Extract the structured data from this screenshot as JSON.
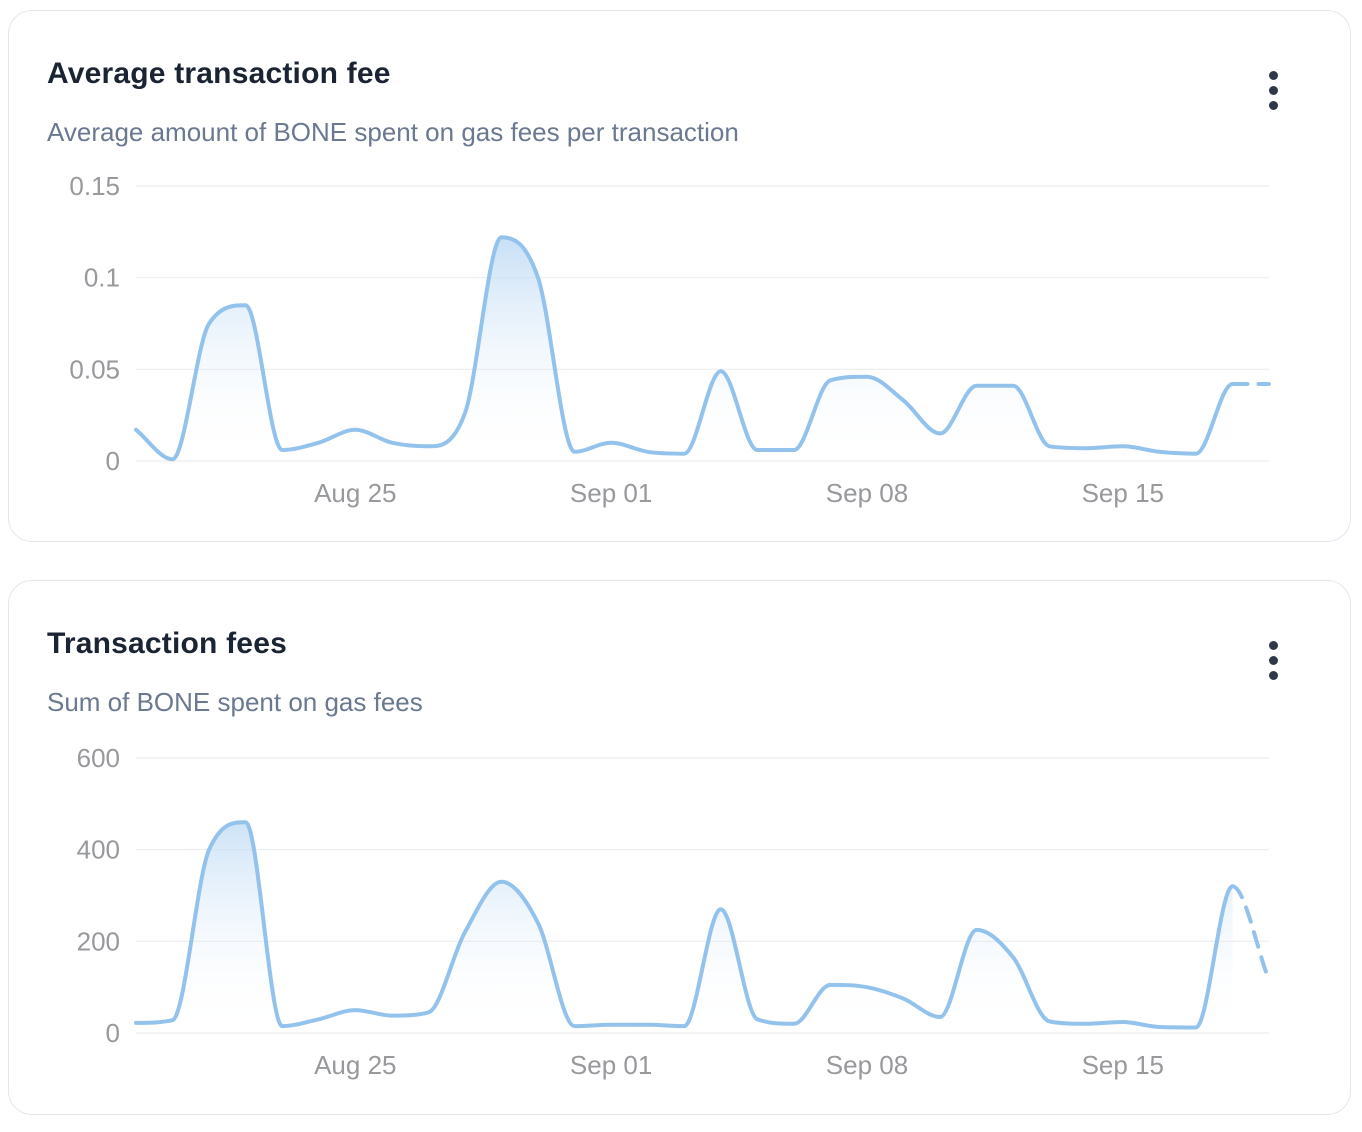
{
  "cards": [
    {
      "title": "Average transaction fee",
      "subtitle": "Average amount of BONE spent on gas fees per transaction",
      "menu_icon": "kebab-menu-icon"
    },
    {
      "title": "Transaction fees",
      "subtitle": "Sum of BONE spent on gas fees",
      "menu_icon": "kebab-menu-icon"
    }
  ],
  "colors": {
    "background": "#ffffff",
    "card_border": "#e2e7ee",
    "title": "#1b2433",
    "subtitle": "#6a7890",
    "tick_label": "#97999c",
    "grid": "#e9eaec",
    "line": "#93c2ec",
    "fill_top": "#9cc7ef",
    "menu_dots": "#2f3847"
  },
  "chart_data": [
    {
      "type": "area",
      "title": "Average transaction fee",
      "ylabel": "",
      "xlabel": "",
      "grid": "horizontal",
      "legend": false,
      "dashed_last_segment": true,
      "ylim": [
        0,
        0.15
      ],
      "y_ticks": [
        {
          "value": 0,
          "label": "0"
        },
        {
          "value": 0.05,
          "label": "0.05"
        },
        {
          "value": 0.1,
          "label": "0.1"
        },
        {
          "value": 0.15,
          "label": "0.15"
        }
      ],
      "x_ticks": [
        {
          "index": 6,
          "label": "Aug 25"
        },
        {
          "index": 13,
          "label": "Sep 01"
        },
        {
          "index": 20,
          "label": "Sep 08"
        },
        {
          "index": 27,
          "label": "Sep 15"
        }
      ],
      "x": [
        "Aug 19",
        "Aug 20",
        "Aug 21",
        "Aug 22",
        "Aug 23",
        "Aug 24",
        "Aug 25",
        "Aug 26",
        "Aug 27",
        "Aug 28",
        "Aug 29",
        "Aug 30",
        "Aug 31",
        "Sep 01",
        "Sep 02",
        "Sep 03",
        "Sep 04",
        "Sep 05",
        "Sep 06",
        "Sep 07",
        "Sep 08",
        "Sep 09",
        "Sep 10",
        "Sep 11",
        "Sep 12",
        "Sep 13",
        "Sep 14",
        "Sep 15",
        "Sep 16",
        "Sep 17",
        "Sep 18",
        "Sep 19"
      ],
      "values": [
        0.017,
        0.001,
        0.075,
        0.085,
        0.006,
        0.01,
        0.017,
        0.01,
        0.008,
        0.026,
        0.122,
        0.1,
        0.005,
        0.01,
        0.005,
        0.004,
        0.049,
        0.006,
        0.006,
        0.044,
        0.046,
        0.033,
        0.015,
        0.041,
        0.041,
        0.008,
        0.007,
        0.008,
        0.005,
        0.004,
        0.042,
        0.042
      ]
    },
    {
      "type": "area",
      "title": "Transaction fees",
      "ylabel": "",
      "xlabel": "",
      "grid": "horizontal",
      "legend": false,
      "dashed_last_segment": true,
      "ylim": [
        0,
        600
      ],
      "y_ticks": [
        {
          "value": 0,
          "label": "0"
        },
        {
          "value": 200,
          "label": "200"
        },
        {
          "value": 400,
          "label": "400"
        },
        {
          "value": 600,
          "label": "600"
        }
      ],
      "x_ticks": [
        {
          "index": 6,
          "label": "Aug 25"
        },
        {
          "index": 13,
          "label": "Sep 01"
        },
        {
          "index": 20,
          "label": "Sep 08"
        },
        {
          "index": 27,
          "label": "Sep 15"
        }
      ],
      "x": [
        "Aug 19",
        "Aug 20",
        "Aug 21",
        "Aug 22",
        "Aug 23",
        "Aug 24",
        "Aug 25",
        "Aug 26",
        "Aug 27",
        "Aug 28",
        "Aug 29",
        "Aug 30",
        "Aug 31",
        "Sep 01",
        "Sep 02",
        "Sep 03",
        "Sep 04",
        "Sep 05",
        "Sep 06",
        "Sep 07",
        "Sep 08",
        "Sep 09",
        "Sep 10",
        "Sep 11",
        "Sep 12",
        "Sep 13",
        "Sep 14",
        "Sep 15",
        "Sep 16",
        "Sep 17",
        "Sep 18",
        "Sep 19"
      ],
      "values": [
        22,
        28,
        400,
        460,
        15,
        30,
        50,
        38,
        45,
        220,
        330,
        240,
        15,
        18,
        18,
        15,
        270,
        30,
        20,
        105,
        100,
        75,
        35,
        225,
        165,
        25,
        20,
        24,
        13,
        12,
        320,
        115
      ]
    }
  ]
}
